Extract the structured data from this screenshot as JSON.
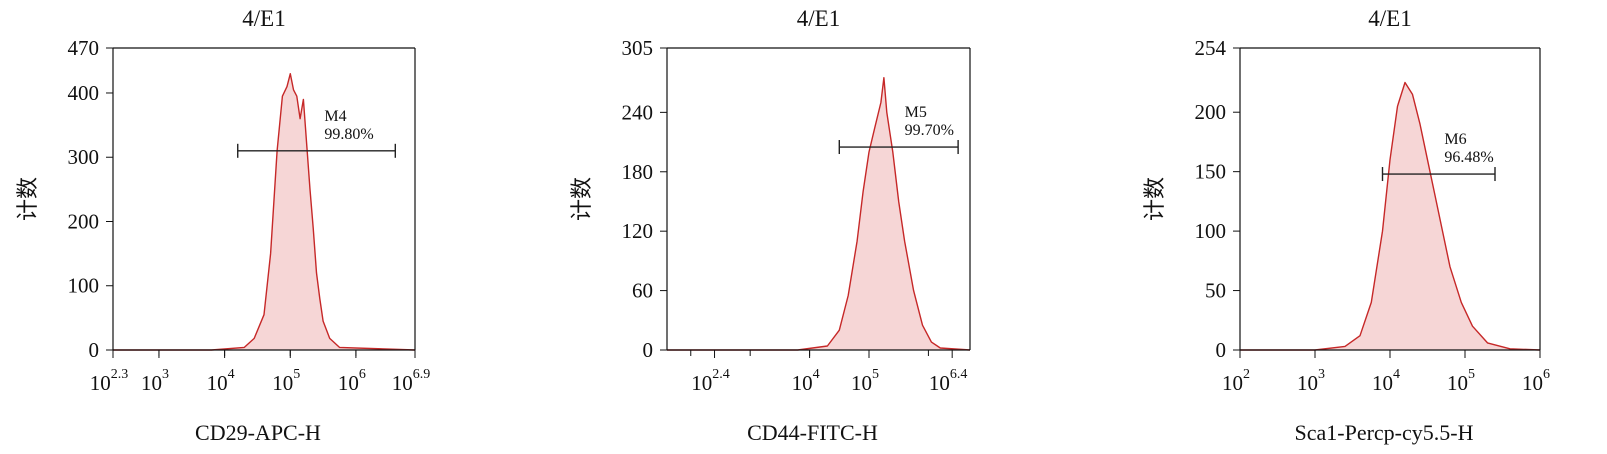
{
  "chart_data": [
    {
      "type": "area",
      "title": "4/E1",
      "xlabel": "CD29-APC-H",
      "ylabel": "计数",
      "x_scale": "log10",
      "xlim": [
        2.3,
        6.9
      ],
      "ylim": [
        0,
        470
      ],
      "x_ticks": [
        {
          "value": 2.3,
          "base": "10",
          "exp": "2.3"
        },
        {
          "value": 3,
          "base": "10",
          "exp": "3"
        },
        {
          "value": 4,
          "base": "10",
          "exp": "4"
        },
        {
          "value": 5,
          "base": "10",
          "exp": "5"
        },
        {
          "value": 6,
          "base": "10",
          "exp": "6"
        },
        {
          "value": 6.9,
          "base": "10",
          "exp": "6.9"
        }
      ],
      "y_ticks": [
        0,
        100,
        200,
        300,
        400,
        470
      ],
      "series": [
        {
          "x": [
            2.3,
            3.8,
            4.3,
            4.45,
            4.6,
            4.7,
            4.8,
            4.88,
            4.95,
            5.0,
            5.05,
            5.1,
            5.15,
            5.2,
            5.25,
            5.3,
            5.35,
            5.4,
            5.45,
            5.5,
            5.6,
            5.75,
            6.9
          ],
          "y": [
            0,
            0,
            4,
            18,
            55,
            150,
            310,
            395,
            410,
            430,
            405,
            395,
            360,
            390,
            320,
            250,
            190,
            120,
            80,
            45,
            18,
            4,
            0
          ]
        }
      ],
      "markers": [
        {
          "name": "M4",
          "percent": "99.80%",
          "x_start": 4.2,
          "x_end": 6.6,
          "y": 310
        }
      ]
    },
    {
      "type": "area",
      "title": "4/E1",
      "xlabel": "CD44-FITC-H",
      "ylabel": "计数",
      "x_scale": "log10",
      "xlim": [
        1.6,
        6.7
      ],
      "ylim": [
        0,
        305
      ],
      "x_ticks": [
        {
          "value": 2.4,
          "base": "10",
          "exp": "2.4"
        },
        {
          "value": 4,
          "base": "10",
          "exp": "4"
        },
        {
          "value": 5,
          "base": "10",
          "exp": "5"
        },
        {
          "value": 6.4,
          "base": "10",
          "exp": "6.4"
        }
      ],
      "y_ticks": [
        0,
        60,
        120,
        180,
        240,
        305
      ],
      "series": [
        {
          "x": [
            1.6,
            3.8,
            4.3,
            4.5,
            4.65,
            4.8,
            4.9,
            5.0,
            5.1,
            5.2,
            5.25,
            5.3,
            5.35,
            5.4,
            5.5,
            5.6,
            5.75,
            5.9,
            6.05,
            6.2,
            6.7
          ],
          "y": [
            0,
            0,
            4,
            20,
            55,
            110,
            160,
            200,
            225,
            250,
            275,
            240,
            220,
            200,
            150,
            110,
            60,
            25,
            8,
            2,
            0
          ]
        }
      ],
      "markers": [
        {
          "name": "M5",
          "percent": "99.70%",
          "x_start": 4.5,
          "x_end": 6.5,
          "y": 205
        }
      ]
    },
    {
      "type": "area",
      "title": "4/E1",
      "xlabel": "Sca1-Percp-cy5.5-H",
      "ylabel": "计数",
      "x_scale": "log10",
      "xlim": [
        2,
        6
      ],
      "ylim": [
        0,
        254
      ],
      "x_ticks": [
        {
          "value": 2,
          "base": "10",
          "exp": "2"
        },
        {
          "value": 3,
          "base": "10",
          "exp": "3"
        },
        {
          "value": 4,
          "base": "10",
          "exp": "4"
        },
        {
          "value": 5,
          "base": "10",
          "exp": "5"
        },
        {
          "value": 6,
          "base": "10",
          "exp": "6"
        }
      ],
      "y_ticks": [
        0,
        50,
        100,
        150,
        200,
        254
      ],
      "series": [
        {
          "x": [
            2,
            3.0,
            3.4,
            3.6,
            3.75,
            3.9,
            4.0,
            4.1,
            4.2,
            4.3,
            4.4,
            4.5,
            4.6,
            4.7,
            4.8,
            4.95,
            5.1,
            5.3,
            5.6,
            6
          ],
          "y": [
            0,
            0,
            3,
            12,
            40,
            100,
            160,
            205,
            225,
            215,
            190,
            160,
            130,
            100,
            70,
            40,
            20,
            6,
            1,
            0
          ]
        }
      ],
      "markers": [
        {
          "name": "M6",
          "percent": "96.48%",
          "x_start": 3.9,
          "x_end": 5.4,
          "y": 148
        }
      ]
    }
  ]
}
